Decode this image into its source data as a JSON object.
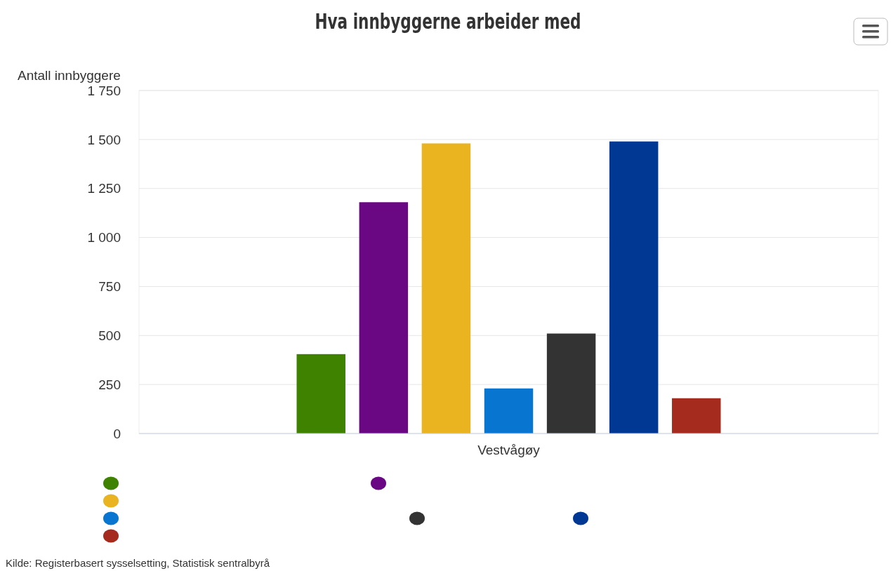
{
  "chart_data": {
    "type": "bar",
    "title": "Hva innbyggerne arbeider med",
    "ylabel": "Antall innbyggere",
    "categories": [
      "Vestvågøy"
    ],
    "series": [
      {
        "color": "#3f8200",
        "values": [
          405
        ]
      },
      {
        "color": "#6a0783",
        "values": [
          1180
        ]
      },
      {
        "color": "#eab320",
        "values": [
          1480
        ]
      },
      {
        "color": "#0876d1",
        "values": [
          230
        ]
      },
      {
        "color": "#333333",
        "values": [
          510
        ]
      },
      {
        "color": "#003893",
        "values": [
          1490
        ]
      },
      {
        "color": "#a62b1f",
        "values": [
          180
        ]
      }
    ],
    "ylim": [
      0,
      1750
    ],
    "yticks": [
      0,
      250,
      500,
      750,
      {
        "value": 1000,
        "label": "1 000"
      },
      {
        "value": 1250,
        "label": "1 250"
      },
      {
        "value": 1500,
        "label": "1 500"
      },
      {
        "value": 1750,
        "label": "1 750"
      }
    ],
    "grid": "y",
    "annotations": [
      "Kilde: Registerbasert sysselsetting, Statistisk sentralbyrå"
    ]
  }
}
